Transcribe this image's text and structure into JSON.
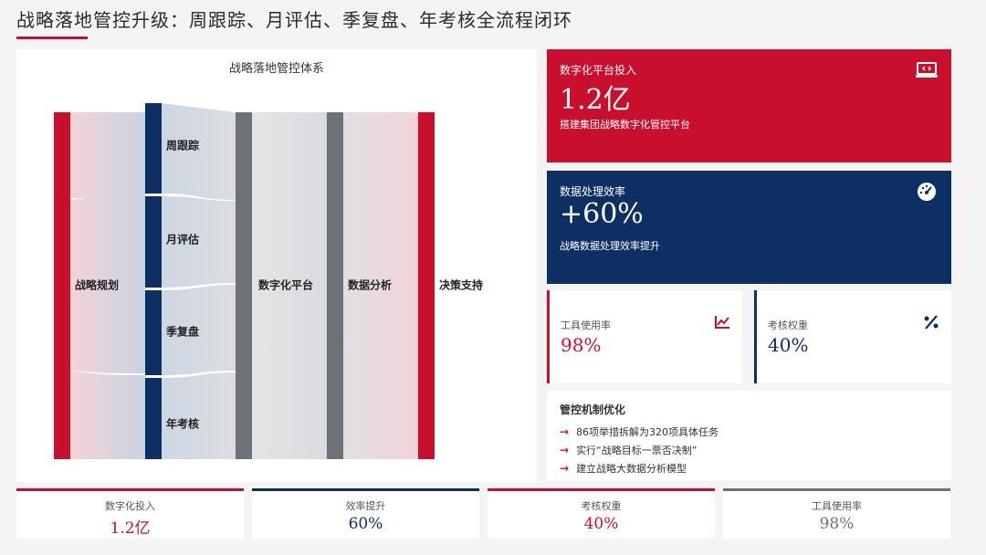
{
  "header": {
    "title": "战略落地管控升级：周跟踪、月评估、季复盘、年考核全流程闭环"
  },
  "diagram": {
    "title": "战略落地管控体系",
    "nodes": {
      "planning": "战略规划",
      "weekly": "周跟踪",
      "monthly": "月评估",
      "quarterly": "季复盘",
      "yearly": "年考核",
      "platform": "数字化平台",
      "analysis": "数据分析",
      "decision": "决策支持"
    },
    "colors": {
      "red": "#c8102e",
      "navy": "#0d2f63",
      "gray": "#6d7178"
    }
  },
  "cards": {
    "investment": {
      "label": "数字化平台投入",
      "value": "1.2亿",
      "desc": "搭建集团战略数字化管控平台",
      "icon": "laptop-code-icon"
    },
    "efficiency": {
      "label": "数据处理效率",
      "value": "+60%",
      "desc": "战略数据处理效率提升",
      "icon": "gauge-icon"
    },
    "tool_usage": {
      "label": "工具使用率",
      "value": "98%",
      "icon": "line-chart-icon"
    },
    "assessment": {
      "label": "考核权重",
      "value": "40%",
      "icon": "percent-icon"
    }
  },
  "mechanism": {
    "title": "管控机制优化",
    "items": [
      "86项举措拆解为320项具体任务",
      "实行“战略目标一票否决制”",
      "建立战略大数据分析模型"
    ]
  },
  "stats": [
    {
      "label": "数字化投入",
      "value": "1.2亿"
    },
    {
      "label": "效率提升",
      "value": "60%"
    },
    {
      "label": "考核权重",
      "value": "40%"
    },
    {
      "label": "工具使用率",
      "value": "98%"
    }
  ]
}
